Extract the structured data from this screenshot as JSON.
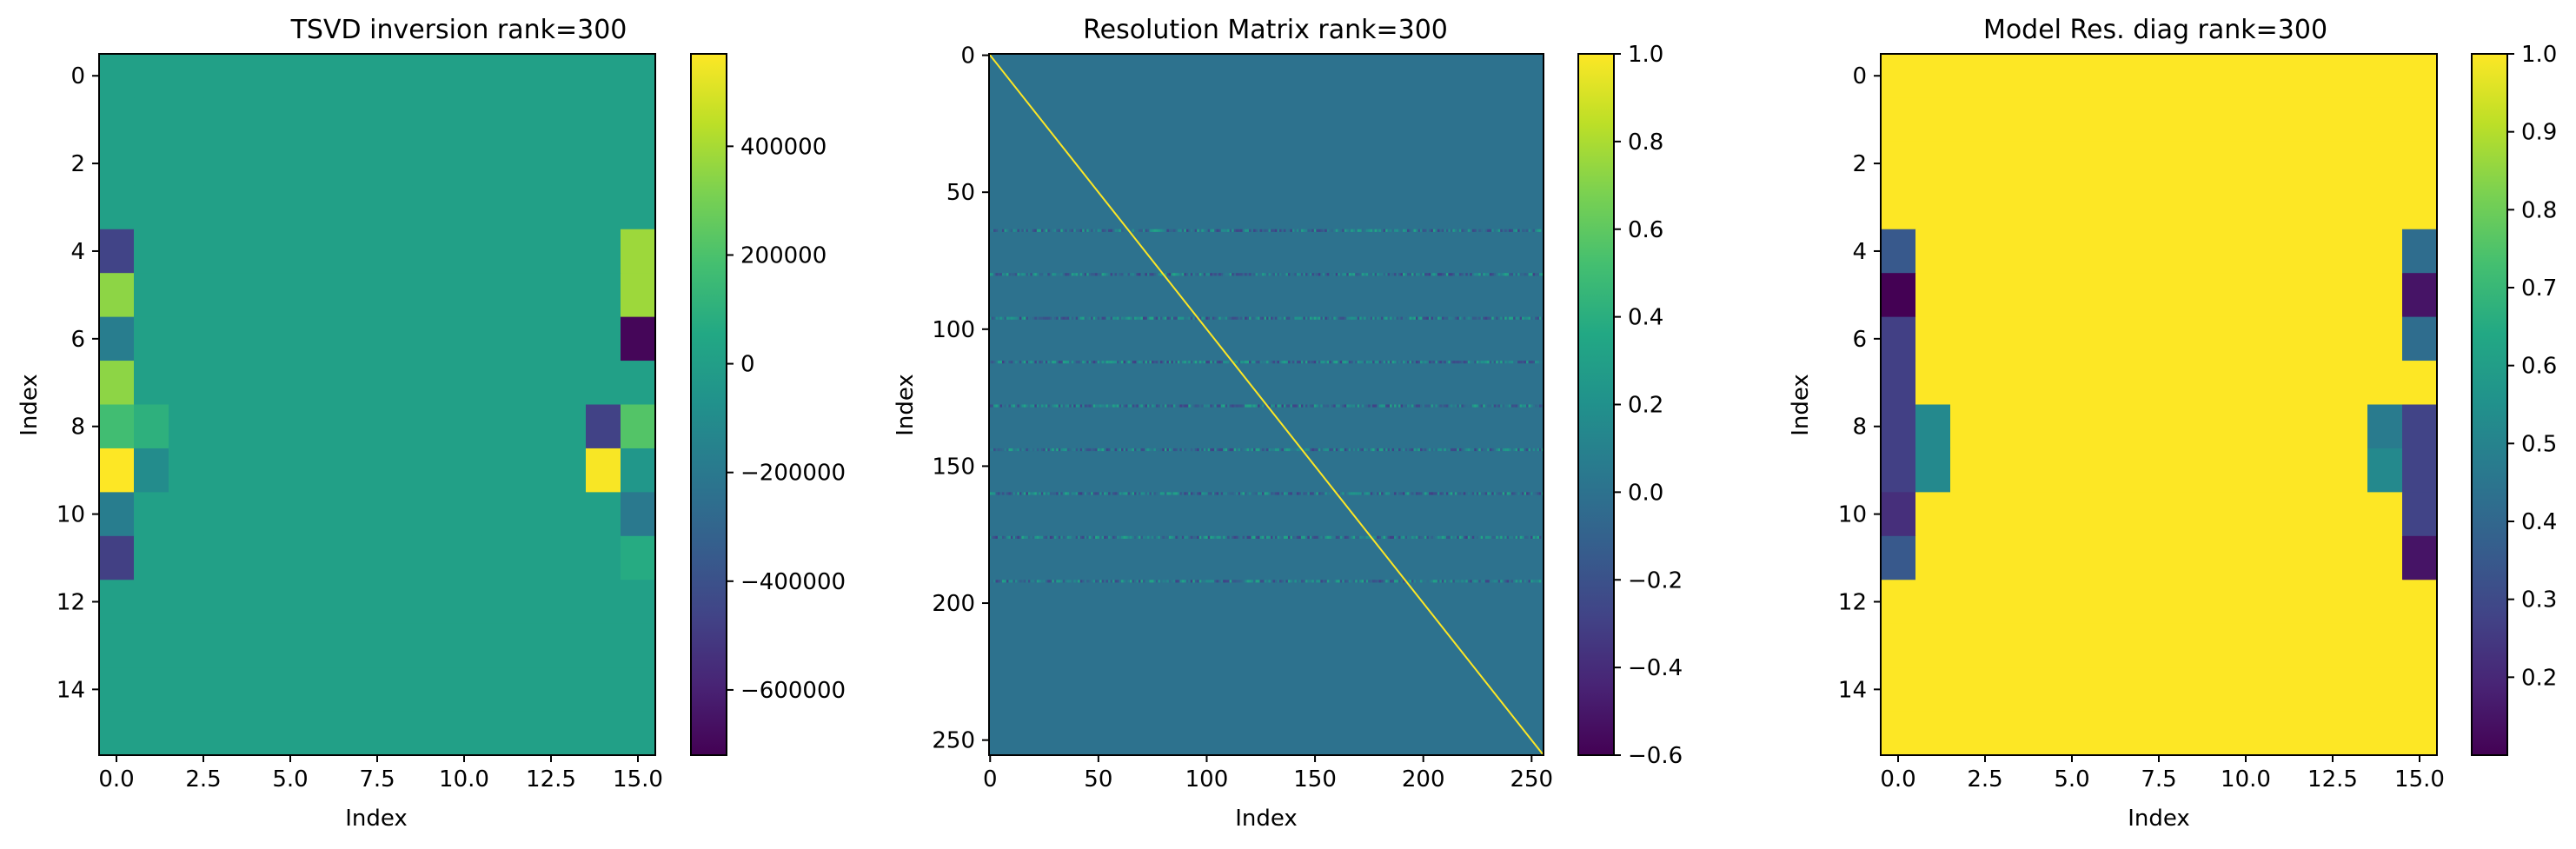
{
  "chart_data": [
    {
      "type": "heatmap",
      "title": "TSVD inversion rank=300",
      "xlabel": "Index",
      "ylabel": "Index",
      "rows": 16,
      "cols": 16,
      "xlim": [
        -0.5,
        15.5
      ],
      "ylim": [
        15.5,
        -0.5
      ],
      "xticks": [
        0.0,
        2.5,
        5.0,
        7.5,
        10.0,
        12.5,
        15.0
      ],
      "xtick_labels": [
        "0.0",
        "2.5",
        "5.0",
        "7.5",
        "10.0",
        "12.5",
        "15.0"
      ],
      "yticks": [
        0,
        2,
        4,
        6,
        8,
        10,
        12,
        14
      ],
      "ytick_labels": [
        "0",
        "2",
        "4",
        "6",
        "8",
        "10",
        "12",
        "14"
      ],
      "colormap": "viridis",
      "vmin": -720000,
      "vmax": 570000,
      "default_value": 10000,
      "cells": [
        {
          "row": 4,
          "col": 0,
          "value": -460000
        },
        {
          "row": 5,
          "col": 0,
          "value": 350000
        },
        {
          "row": 6,
          "col": 0,
          "value": -180000
        },
        {
          "row": 7,
          "col": 0,
          "value": 350000
        },
        {
          "row": 8,
          "col": 0,
          "value": 170000
        },
        {
          "row": 8,
          "col": 1,
          "value": 100000
        },
        {
          "row": 9,
          "col": 0,
          "value": 570000
        },
        {
          "row": 9,
          "col": 1,
          "value": -100000
        },
        {
          "row": 10,
          "col": 0,
          "value": -180000
        },
        {
          "row": 11,
          "col": 0,
          "value": -480000
        },
        {
          "row": 4,
          "col": 15,
          "value": 380000
        },
        {
          "row": 5,
          "col": 15,
          "value": 380000
        },
        {
          "row": 6,
          "col": 15,
          "value": -700000
        },
        {
          "row": 8,
          "col": 14,
          "value": -470000
        },
        {
          "row": 8,
          "col": 15,
          "value": 220000
        },
        {
          "row": 9,
          "col": 14,
          "value": 560000
        },
        {
          "row": 9,
          "col": 15,
          "value": -40000
        },
        {
          "row": 10,
          "col": 15,
          "value": -200000
        },
        {
          "row": 11,
          "col": 15,
          "value": 70000
        }
      ],
      "colorbar": {
        "ticks": [
          400000,
          200000,
          0,
          -200000,
          -400000,
          -600000
        ],
        "tick_labels": [
          "400000",
          "200000",
          "0",
          "−200000",
          "−400000",
          "−600000"
        ]
      }
    },
    {
      "type": "heatmap",
      "title": "Resolution Matrix rank=300",
      "xlabel": "Index",
      "ylabel": "Index",
      "rows": 256,
      "cols": 256,
      "xlim": [
        -0.5,
        255.5
      ],
      "ylim": [
        255.5,
        -0.5
      ],
      "xticks": [
        0,
        50,
        100,
        150,
        200,
        250
      ],
      "xtick_labels": [
        "0",
        "50",
        "100",
        "150",
        "200",
        "250"
      ],
      "yticks": [
        0,
        50,
        100,
        150,
        200,
        250
      ],
      "ytick_labels": [
        "0",
        "50",
        "100",
        "150",
        "200",
        "250"
      ],
      "colormap": "viridis",
      "vmin": -0.6,
      "vmax": 1.0,
      "default_value": 0.0,
      "diagonal_value": 1.0,
      "noisy_rows": [
        64,
        80,
        96,
        112,
        128,
        144,
        160,
        176,
        192
      ],
      "noisy_row_range": [
        -0.3,
        0.35
      ],
      "colorbar": {
        "ticks": [
          1.0,
          0.8,
          0.6,
          0.4,
          0.2,
          0.0,
          -0.2,
          -0.4,
          -0.6
        ],
        "tick_labels": [
          "1.0",
          "0.8",
          "0.6",
          "0.4",
          "0.2",
          "0.0",
          "−0.2",
          "−0.4",
          "−0.6"
        ]
      }
    },
    {
      "type": "heatmap",
      "title": "Model Res. diag rank=300",
      "xlabel": "Index",
      "ylabel": "Index",
      "rows": 16,
      "cols": 16,
      "xlim": [
        -0.5,
        15.5
      ],
      "ylim": [
        15.5,
        -0.5
      ],
      "xticks": [
        0.0,
        2.5,
        5.0,
        7.5,
        10.0,
        12.5,
        15.0
      ],
      "xtick_labels": [
        "0.0",
        "2.5",
        "5.0",
        "7.5",
        "10.0",
        "12.5",
        "15.0"
      ],
      "yticks": [
        0,
        2,
        4,
        6,
        8,
        10,
        12,
        14
      ],
      "ytick_labels": [
        "0",
        "2",
        "4",
        "6",
        "8",
        "10",
        "12",
        "14"
      ],
      "colormap": "viridis",
      "vmin": 0.1,
      "vmax": 1.0,
      "default_value": 1.0,
      "cells": [
        {
          "row": 4,
          "col": 0,
          "value": 0.35
        },
        {
          "row": 5,
          "col": 0,
          "value": 0.1
        },
        {
          "row": 6,
          "col": 0,
          "value": 0.27
        },
        {
          "row": 7,
          "col": 0,
          "value": 0.27
        },
        {
          "row": 8,
          "col": 0,
          "value": 0.27
        },
        {
          "row": 8,
          "col": 1,
          "value": 0.52
        },
        {
          "row": 9,
          "col": 0,
          "value": 0.27
        },
        {
          "row": 9,
          "col": 1,
          "value": 0.52
        },
        {
          "row": 10,
          "col": 0,
          "value": 0.22
        },
        {
          "row": 11,
          "col": 0,
          "value": 0.35
        },
        {
          "row": 4,
          "col": 15,
          "value": 0.42
        },
        {
          "row": 5,
          "col": 15,
          "value": 0.15
        },
        {
          "row": 6,
          "col": 15,
          "value": 0.42
        },
        {
          "row": 8,
          "col": 14,
          "value": 0.47
        },
        {
          "row": 8,
          "col": 15,
          "value": 0.28
        },
        {
          "row": 9,
          "col": 14,
          "value": 0.52
        },
        {
          "row": 9,
          "col": 15,
          "value": 0.28
        },
        {
          "row": 10,
          "col": 15,
          "value": 0.28
        },
        {
          "row": 11,
          "col": 15,
          "value": 0.15
        }
      ],
      "colorbar": {
        "ticks": [
          1.0,
          0.9,
          0.8,
          0.7,
          0.6,
          0.5,
          0.4,
          0.3,
          0.2
        ],
        "tick_labels": [
          "1.0",
          "0.9",
          "0.8",
          "0.7",
          "0.6",
          "0.5",
          "0.4",
          "0.3",
          "0.2"
        ]
      }
    }
  ]
}
